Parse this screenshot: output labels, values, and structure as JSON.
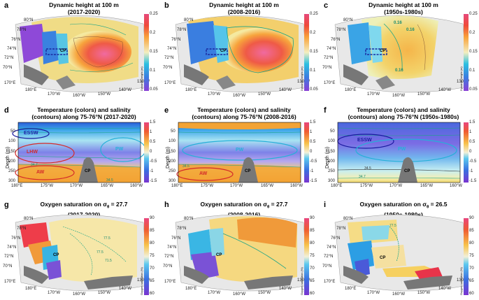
{
  "row1": {
    "panels": [
      {
        "label": "a",
        "title1": "Dynamic height at 100 m",
        "title2": "(2017-2020)"
      },
      {
        "label": "b",
        "title1": "Dynamic height at 100 m",
        "title2": "(2008-2016)"
      },
      {
        "label": "c",
        "title1": "Dynamic height at 100 m",
        "title2": "(1950s-1980s)"
      }
    ],
    "cbar_ticks": [
      "0.25",
      "0.2",
      "0.15",
      "0.1",
      "0.05"
    ],
    "cbar_title": "Dynamic height (m)",
    "lat_ticks": [
      "80°N",
      "78°N",
      "76°N",
      "74°N",
      "72°N",
      "70°N"
    ],
    "lon_ticks": [
      "170°E",
      "180°E",
      "170°W",
      "160°W",
      "150°W",
      "140°W",
      "130°W"
    ],
    "contour_labels_c": [
      "0.16",
      "0.16",
      "0.16"
    ]
  },
  "row2": {
    "panels": [
      {
        "label": "d",
        "title1": "Temperature (colors) and salinity",
        "title2": "(contours) along 75-76°N (2017-2020)"
      },
      {
        "label": "e",
        "title1": "Temperature (colors) and salinity",
        "title2": "(contours) along 75-76°N (2008-2016)"
      },
      {
        "label": "f",
        "title1": "Temperature (colors) and salinity",
        "title2": "(contours) along 75-76°N (1950s-1980s)"
      }
    ],
    "ylabel": "Depth (m)",
    "depth_ticks": [
      "50",
      "100",
      "150",
      "200",
      "250",
      "300"
    ],
    "x_ticks": [
      "180°E",
      "175°W",
      "170°W",
      "165°W",
      "160°W"
    ],
    "cbar_ticks": [
      "1.5",
      "1",
      "0.5",
      "0",
      "-0.5",
      "-1",
      "-1.5"
    ],
    "cbar_title": "Temperature (°C)",
    "water_masses": {
      "essw": "ESSW",
      "lhw": "LHW",
      "pw": "PW",
      "aw": "AW",
      "cp": "CP"
    },
    "salinity_labels": [
      "31",
      "32",
      "33",
      "34.5",
      "34.7"
    ]
  },
  "row3": {
    "panels": [
      {
        "label": "g",
        "title1a": "Oxygen saturation on σ",
        "sub": "θ",
        "title1b": " = 27.7",
        "title2": "(2017-2020)"
      },
      {
        "label": "h",
        "title1a": "Oxygen saturation on σ",
        "sub": "θ",
        "title1b": " = 27.7",
        "title2": "(2008-2016)"
      },
      {
        "label": "i",
        "title1a": "Oxygen saturation on σ",
        "sub": "θ",
        "title1b": " = 26.5",
        "title2": "(1950s-1980s)"
      }
    ],
    "cbar_ticks": [
      "90",
      "85",
      "80",
      "75",
      "70",
      "65",
      "60"
    ],
    "cbar_title": "Oxygen saturation (%)",
    "contour_labels": [
      "77.5",
      "77.5",
      "71.5",
      "77.5"
    ]
  },
  "cp_label": "CP",
  "chart_data": [
    {
      "type": "heatmap",
      "title": "Dynamic height at 100 m (2017-2020)",
      "colorbar_range": [
        0.05,
        0.25
      ],
      "colorbar_label": "Dynamic height (m)"
    },
    {
      "type": "heatmap",
      "title": "Dynamic height at 100 m (2008-2016)",
      "colorbar_range": [
        0.05,
        0.25
      ],
      "colorbar_label": "Dynamic height (m)"
    },
    {
      "type": "heatmap",
      "title": "Dynamic height at 100 m (1950s-1980s)",
      "colorbar_range": [
        0.05,
        0.25
      ],
      "contour_labels": [
        0.16
      ]
    },
    {
      "type": "heatmap",
      "title": "Temperature (colors) and salinity (contours) along 75-76°N (2017-2020)",
      "xlabel": "",
      "ylabel": "Depth (m)",
      "ylim": [
        300,
        0
      ],
      "xlim": [
        "180°E",
        "160°W"
      ],
      "colorbar_range": [
        -1.5,
        1.5
      ],
      "annotations": [
        "ESSW",
        "LHW",
        "PW",
        "AW",
        "CP"
      ],
      "salinity_contours": [
        31,
        32,
        33,
        34.5,
        34.7
      ]
    },
    {
      "type": "heatmap",
      "title": "Temperature (colors) and salinity (contours) along 75-76°N (2008-2016)",
      "ylabel": "Depth (m)",
      "ylim": [
        300,
        0
      ],
      "colorbar_range": [
        -1.5,
        1.5
      ],
      "annotations": [
        "PW",
        "AW",
        "CP"
      ]
    },
    {
      "type": "heatmap",
      "title": "Temperature (colors) and salinity (contours) along 75-76°N (1950s-1980s)",
      "ylabel": "Depth (m)",
      "ylim": [
        300,
        0
      ],
      "colorbar_range": [
        -1.5,
        1.5
      ],
      "annotations": [
        "ESSW",
        "PW",
        "CP"
      ]
    },
    {
      "type": "heatmap",
      "title": "Oxygen saturation on σθ = 27.7 (2017-2020)",
      "colorbar_range": [
        60,
        90
      ],
      "contour_labels": [
        77.5,
        71.5
      ]
    },
    {
      "type": "heatmap",
      "title": "Oxygen saturation on σθ = 27.7 (2008-2016)",
      "colorbar_range": [
        60,
        90
      ]
    },
    {
      "type": "heatmap",
      "title": "Oxygen saturation on σθ = 26.5 (1950s-1980s)",
      "colorbar_range": [
        60,
        90
      ]
    }
  ]
}
